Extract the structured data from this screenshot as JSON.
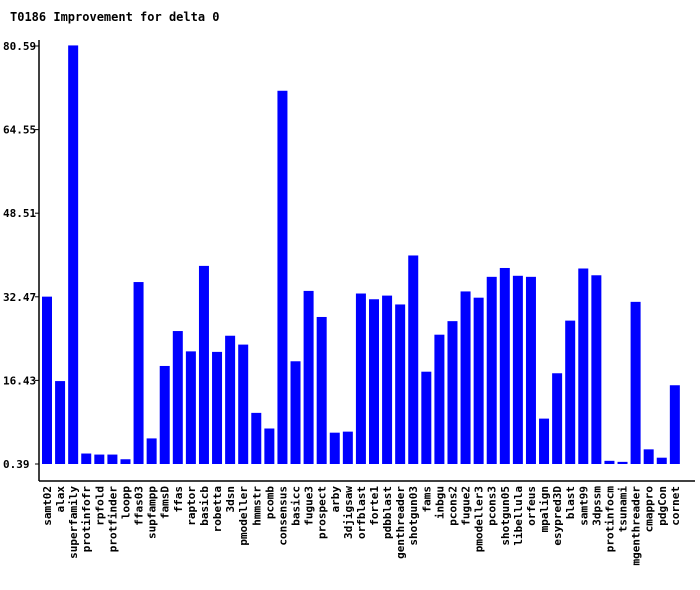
{
  "chart_data": {
    "type": "bar",
    "title": "T0186 Improvement for delta 0",
    "xlabel": "",
    "ylabel": "",
    "ylim": [
      0,
      80.59
    ],
    "yticks": [
      0.39,
      16.43,
      32.47,
      48.51,
      64.55,
      80.59
    ],
    "ytick_labels": [
      "0.39",
      "16.43",
      "32.47",
      "48.51",
      "64.55",
      "80.59"
    ],
    "grid": false,
    "legend": "none",
    "bar_color": "#0000ff",
    "categories": [
      "samt02",
      "alax",
      "superfamily",
      "protinfofr",
      "rpfold",
      "protfinder",
      "loopp",
      "ffas03",
      "supfampp",
      "famsD",
      "ffas",
      "raptor",
      "basicb",
      "robetta",
      "3dsn",
      "pmodeller",
      "hmmstr",
      "pcomb",
      "consensus",
      "basicc",
      "fugue3",
      "prospect",
      "arby",
      "3djigsaw",
      "orfblast",
      "forte1",
      "pdbblast",
      "genthreader",
      "shotgun03",
      "fams",
      "inbgu",
      "pcons2",
      "fugue2",
      "pmodeller3",
      "pcons3",
      "shotgun05",
      "libellula",
      "orfeus",
      "mpalign",
      "esypred3D",
      "blast",
      "samt99",
      "3dpssm",
      "protinfocm",
      "tsunami",
      "mgenthreader",
      "cmappro",
      "pdgCon",
      "cornet"
    ],
    "values": [
      32.5,
      16.3,
      80.7,
      2.4,
      2.2,
      2.2,
      1.3,
      35.3,
      5.3,
      19.2,
      25.9,
      22.0,
      38.4,
      21.9,
      25.0,
      23.3,
      10.2,
      7.2,
      72.0,
      20.1,
      33.6,
      28.6,
      6.4,
      6.6,
      33.1,
      32.0,
      32.7,
      31.0,
      40.4,
      18.1,
      25.2,
      27.8,
      33.5,
      32.3,
      36.3,
      38.0,
      36.5,
      36.3,
      9.1,
      17.8,
      27.9,
      37.9,
      36.6,
      1.0,
      0.8,
      31.5,
      3.2,
      1.6,
      15.5
    ]
  }
}
